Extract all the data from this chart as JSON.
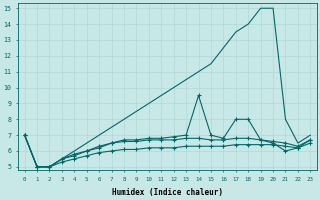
{
  "xlabel": "Humidex (Indice chaleur)",
  "ylabel": "",
  "xlim": [
    -0.5,
    23.5
  ],
  "ylim": [
    4.8,
    15.3
  ],
  "yticks": [
    5,
    6,
    7,
    8,
    9,
    10,
    11,
    12,
    13,
    14,
    15
  ],
  "xticks": [
    0,
    1,
    2,
    3,
    4,
    5,
    6,
    7,
    8,
    9,
    10,
    11,
    12,
    13,
    14,
    15,
    16,
    17,
    18,
    19,
    20,
    21,
    22,
    23
  ],
  "bg_color": "#c8e8e8",
  "grid_color": "#b0d8d4",
  "line_color": "#006868",
  "line_diagonal": [
    7.0,
    5.0,
    5.0,
    5.5,
    6.0,
    6.5,
    7.0,
    7.5,
    8.0,
    8.5,
    9.0,
    9.5,
    10.0,
    10.5,
    11.0,
    11.5,
    12.5,
    13.5,
    14.0,
    15.0,
    15.0,
    8.0,
    6.5,
    7.0
  ],
  "line_spike": [
    7.0,
    5.0,
    5.0,
    5.5,
    5.8,
    6.0,
    6.3,
    6.5,
    6.7,
    6.7,
    6.8,
    6.8,
    6.9,
    7.0,
    9.5,
    7.0,
    6.8,
    8.0,
    8.0,
    6.7,
    6.5,
    6.0,
    6.2,
    6.7
  ],
  "line_mid": [
    7.0,
    5.0,
    5.0,
    5.5,
    5.7,
    6.0,
    6.2,
    6.5,
    6.6,
    6.6,
    6.7,
    6.7,
    6.7,
    6.8,
    6.8,
    6.7,
    6.7,
    6.8,
    6.8,
    6.7,
    6.6,
    6.5,
    6.3,
    6.7
  ],
  "line_flat": [
    7.0,
    5.0,
    5.0,
    5.3,
    5.5,
    5.7,
    5.9,
    6.0,
    6.1,
    6.1,
    6.2,
    6.2,
    6.2,
    6.3,
    6.3,
    6.3,
    6.3,
    6.4,
    6.4,
    6.4,
    6.4,
    6.3,
    6.2,
    6.5
  ]
}
